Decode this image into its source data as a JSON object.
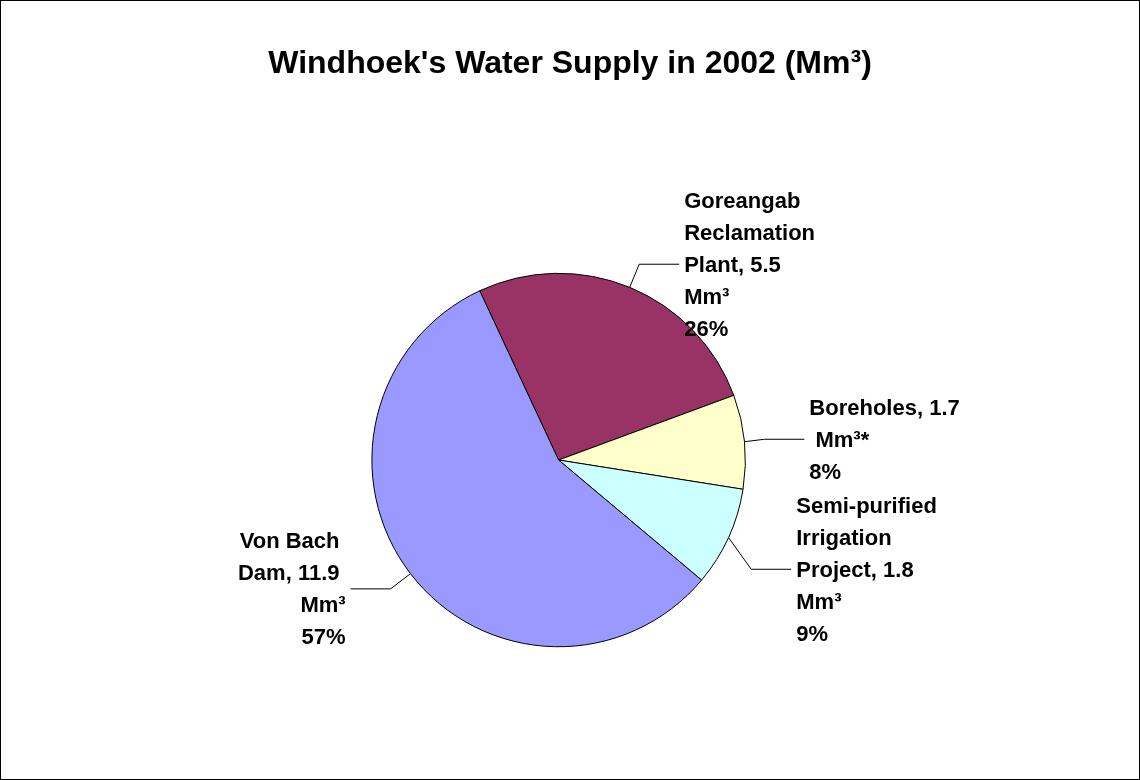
{
  "chart_data": {
    "type": "pie",
    "title": "Windhoek's Water Supply in 2002 (Mm³)",
    "categories": [
      "Goreangab Reclamation Plant",
      "Boreholes",
      "Semi-purified Irrigation Project",
      "Von Bach Dam"
    ],
    "values": [
      5.5,
      1.7,
      1.8,
      11.9
    ],
    "value_labels": [
      "5.5 Mm³\n26%",
      "1.7 Mm³*\n8%",
      "1.8  Mm³\n9%",
      "11.9 Mm³\n57%"
    ],
    "colors": [
      "#993366",
      "#ffffcc",
      "#ccffff",
      "#9999ff"
    ],
    "legend": false
  }
}
